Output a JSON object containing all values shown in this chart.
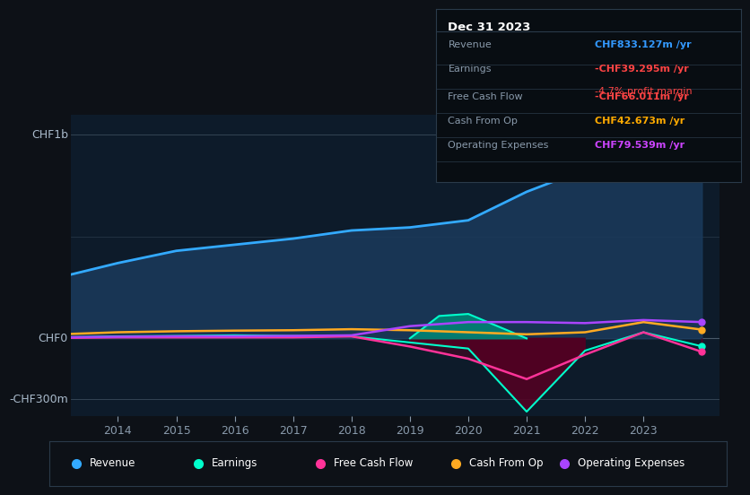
{
  "background_color": "#0d1117",
  "plot_bg_color": "#0d1b2a",
  "title_box": {
    "date": "Dec 31 2023",
    "rows": [
      {
        "label": "Revenue",
        "value": "CHF833.127m",
        "value_color": "#3399ff",
        "suffix": " /yr",
        "extra": null,
        "extra_color": null
      },
      {
        "label": "Earnings",
        "value": "-CHF39.295m",
        "value_color": "#ff4444",
        "suffix": " /yr",
        "extra": "-4.7% profit margin",
        "extra_color": "#ff4444"
      },
      {
        "label": "Free Cash Flow",
        "value": "-CHF66.011m",
        "value_color": "#ff4444",
        "suffix": " /yr",
        "extra": null,
        "extra_color": null
      },
      {
        "label": "Cash From Op",
        "value": "CHF42.673m",
        "value_color": "#ffaa00",
        "suffix": " /yr",
        "extra": null,
        "extra_color": null
      },
      {
        "label": "Operating Expenses",
        "value": "CHF79.539m",
        "value_color": "#cc44ff",
        "suffix": " /yr",
        "extra": null,
        "extra_color": null
      }
    ]
  },
  "ylabel_top": "CHF1b",
  "ylabel_mid": "CHF0",
  "ylabel_bot": "-CHF300m",
  "years": [
    2013,
    2014,
    2015,
    2016,
    2017,
    2018,
    2019,
    2020,
    2021,
    2022,
    2023,
    2024
  ],
  "revenue": [
    300,
    370,
    430,
    460,
    490,
    530,
    545,
    580,
    720,
    830,
    970,
    833
  ],
  "earnings": [
    5,
    10,
    12,
    15,
    12,
    10,
    -20,
    -50,
    -360,
    -60,
    30,
    -39
  ],
  "free_cash_flow": [
    2,
    5,
    5,
    5,
    5,
    10,
    -40,
    -100,
    -200,
    -80,
    30,
    -66
  ],
  "cash_from_op": [
    20,
    30,
    35,
    38,
    40,
    45,
    40,
    30,
    20,
    30,
    80,
    43
  ],
  "op_expenses": [
    5,
    8,
    10,
    10,
    12,
    15,
    60,
    80,
    80,
    75,
    90,
    80
  ],
  "teal_years": [
    2019,
    2019.5,
    2020,
    2020.5,
    2021
  ],
  "teal_vals": [
    0,
    110,
    120,
    60,
    0
  ],
  "revenue_color": "#33aaff",
  "earnings_color": "#00ffcc",
  "fcf_color": "#ff3399",
  "cfo_color": "#ffaa22",
  "opex_color": "#aa44ff",
  "revenue_fill": "#1a3a5c",
  "teal_fill": "#008877",
  "dark_red_fill": "#550022",
  "text_color": "#aabbcc",
  "tick_label_color": "#8899aa",
  "ylim": [
    -380,
    1100
  ],
  "xticks": [
    2014,
    2015,
    2016,
    2017,
    2018,
    2019,
    2020,
    2021,
    2022,
    2023
  ],
  "legend_items": [
    {
      "label": "Revenue",
      "color": "#33aaff"
    },
    {
      "label": "Earnings",
      "color": "#00ffcc"
    },
    {
      "label": "Free Cash Flow",
      "color": "#ff3399"
    },
    {
      "label": "Cash From Op",
      "color": "#ffaa22"
    },
    {
      "label": "Operating Expenses",
      "color": "#aa44ff"
    }
  ]
}
